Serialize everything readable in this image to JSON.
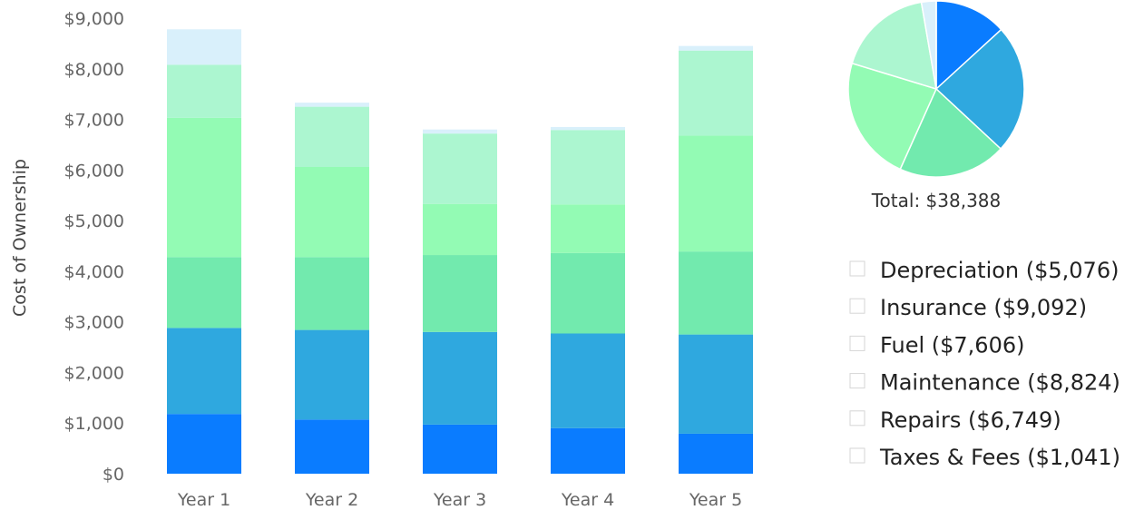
{
  "chart_data": [
    {
      "type": "bar",
      "stacked": true,
      "categories": [
        "Year 1",
        "Year 2",
        "Year 3",
        "Year 4",
        "Year 5"
      ],
      "series": [
        {
          "name": "Depreciation",
          "color": "#0a7cff",
          "values": [
            1180,
            1070,
            970,
            900,
            790
          ]
        },
        {
          "name": "Insurance",
          "color": "#2fa8df",
          "values": [
            1700,
            1770,
            1830,
            1870,
            1960
          ]
        },
        {
          "name": "Fuel",
          "color": "#72eaae",
          "values": [
            1400,
            1440,
            1520,
            1590,
            1640
          ]
        },
        {
          "name": "Maintenance",
          "color": "#93fbb4",
          "values": [
            2750,
            1780,
            1010,
            960,
            2290
          ]
        },
        {
          "name": "Repairs",
          "color": "#acf6d0",
          "values": [
            1050,
            1190,
            1390,
            1470,
            1680
          ]
        },
        {
          "name": "Taxes & Fees",
          "color": "#d9f0fb",
          "values": [
            700,
            80,
            80,
            60,
            90
          ]
        }
      ],
      "xlabel": "",
      "ylabel": "Cost of Ownership",
      "ylim": [
        0,
        9000
      ],
      "yticks": [
        0,
        1000,
        2000,
        3000,
        4000,
        5000,
        6000,
        7000,
        8000,
        9000
      ],
      "ytick_labels": [
        "$0",
        "$1,000",
        "$2,000",
        "$3,000",
        "$4,000",
        "$5,000",
        "$6,000",
        "$7,000",
        "$8,000",
        "$9,000"
      ],
      "grid": false,
      "legend": "none"
    },
    {
      "type": "pie",
      "labels": [
        "Depreciation",
        "Insurance",
        "Fuel",
        "Maintenance",
        "Repairs",
        "Taxes & Fees"
      ],
      "values": [
        5076,
        9092,
        7606,
        8824,
        6749,
        1041
      ],
      "colors": [
        "#0a7cff",
        "#2fa8df",
        "#72eaae",
        "#93fbb4",
        "#acf6d0",
        "#d9f0fb"
      ],
      "total_label": "Total: $38,388",
      "legend": "bottom-right",
      "legend_entries": [
        "Depreciation ($5,076)",
        "Insurance ($9,092)",
        "Fuel ($7,606)",
        "Maintenance ($8,824)",
        "Repairs ($6,749)",
        "Taxes & Fees ($1,041)"
      ]
    }
  ]
}
